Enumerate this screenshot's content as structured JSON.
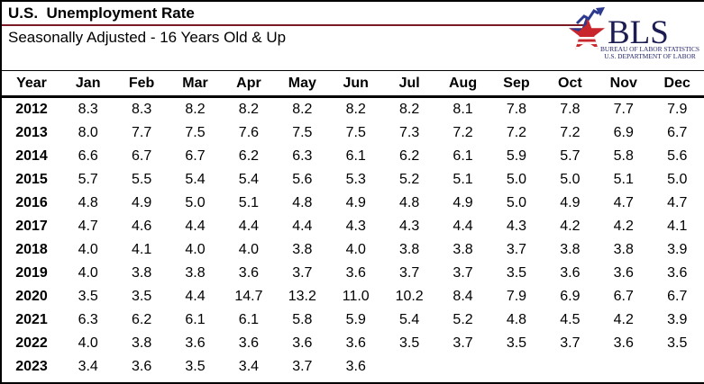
{
  "header": {
    "title": "U.S.  Unemployment Rate",
    "subtitle": "Seasonally Adjusted - 16 Years Old & Up",
    "rule_color": "#7a1a24"
  },
  "logo": {
    "acronym": "BLS",
    "line1": "BUREAU OF LABOR STATISTICS",
    "line2": "U.S. DEPARTMENT OF LABOR",
    "navy_color": "#1c1c52",
    "star_red": "#c9252c",
    "star_blue": "#2b3a8f"
  },
  "chart_data": {
    "type": "table",
    "title": "U.S.  Unemployment Rate",
    "subtitle": "Seasonally Adjusted - 16 Years Old & Up",
    "columns": [
      "Year",
      "Jan",
      "Feb",
      "Mar",
      "Apr",
      "May",
      "Jun",
      "Jul",
      "Aug",
      "Sep",
      "Oct",
      "Nov",
      "Dec"
    ],
    "rows": [
      [
        "2012",
        "8.3",
        "8.3",
        "8.2",
        "8.2",
        "8.2",
        "8.2",
        "8.2",
        "8.1",
        "7.8",
        "7.8",
        "7.7",
        "7.9"
      ],
      [
        "2013",
        "8.0",
        "7.7",
        "7.5",
        "7.6",
        "7.5",
        "7.5",
        "7.3",
        "7.2",
        "7.2",
        "7.2",
        "6.9",
        "6.7"
      ],
      [
        "2014",
        "6.6",
        "6.7",
        "6.7",
        "6.2",
        "6.3",
        "6.1",
        "6.2",
        "6.1",
        "5.9",
        "5.7",
        "5.8",
        "5.6"
      ],
      [
        "2015",
        "5.7",
        "5.5",
        "5.4",
        "5.4",
        "5.6",
        "5.3",
        "5.2",
        "5.1",
        "5.0",
        "5.0",
        "5.1",
        "5.0"
      ],
      [
        "2016",
        "4.8",
        "4.9",
        "5.0",
        "5.1",
        "4.8",
        "4.9",
        "4.8",
        "4.9",
        "5.0",
        "4.9",
        "4.7",
        "4.7"
      ],
      [
        "2017",
        "4.7",
        "4.6",
        "4.4",
        "4.4",
        "4.4",
        "4.3",
        "4.3",
        "4.4",
        "4.3",
        "4.2",
        "4.2",
        "4.1"
      ],
      [
        "2018",
        "4.0",
        "4.1",
        "4.0",
        "4.0",
        "3.8",
        "4.0",
        "3.8",
        "3.8",
        "3.7",
        "3.8",
        "3.8",
        "3.9"
      ],
      [
        "2019",
        "4.0",
        "3.8",
        "3.8",
        "3.6",
        "3.7",
        "3.6",
        "3.7",
        "3.7",
        "3.5",
        "3.6",
        "3.6",
        "3.6"
      ],
      [
        "2020",
        "3.5",
        "3.5",
        "4.4",
        "14.7",
        "13.2",
        "11.0",
        "10.2",
        "8.4",
        "7.9",
        "6.9",
        "6.7",
        "6.7"
      ],
      [
        "2021",
        "6.3",
        "6.2",
        "6.1",
        "6.1",
        "5.8",
        "5.9",
        "5.4",
        "5.2",
        "4.8",
        "4.5",
        "4.2",
        "3.9"
      ],
      [
        "2022",
        "4.0",
        "3.8",
        "3.6",
        "3.6",
        "3.6",
        "3.6",
        "3.5",
        "3.7",
        "3.5",
        "3.7",
        "3.6",
        "3.5"
      ],
      [
        "2023",
        "3.4",
        "3.6",
        "3.5",
        "3.4",
        "3.7",
        "3.6",
        "",
        "",
        "",
        "",
        "",
        ""
      ]
    ]
  }
}
